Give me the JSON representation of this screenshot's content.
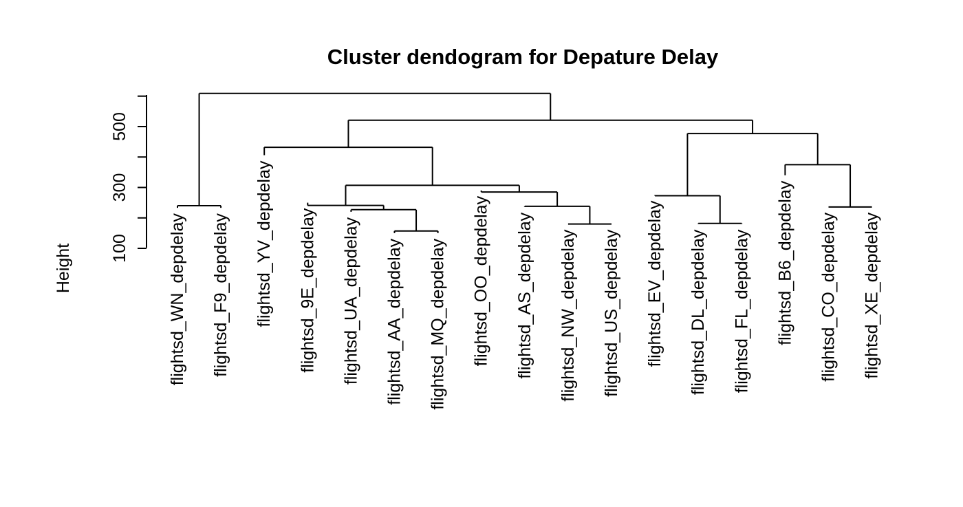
{
  "chart_data": {
    "type": "dendrogram",
    "title": "Cluster dendogram for Depature Delay",
    "xlabel": "",
    "ylabel": "Height",
    "ylim": [
      80,
      620
    ],
    "yticks": [
      100,
      300,
      500
    ],
    "grid": false,
    "legend": "none",
    "leaves": [
      "flightsd_WN_depdelay",
      "flightsd_F9_depdelay",
      "flightsd_YV_depdelay",
      "flightsd_9E_depdelay",
      "flightsd_UA_depdelay",
      "flightsd_AA_depdelay",
      "flightsd_MQ_depdelay",
      "flightsd_OO_depdelay",
      "flightsd_AS_depdelay",
      "flightsd_NW_depdelay",
      "flightsd_US_depdelay",
      "flightsd_EV_depdelay",
      "flightsd_DL_depdelay",
      "flightsd_FL_depdelay",
      "flightsd_B6_depdelay",
      "flightsd_CO_depdelay",
      "flightsd_XE_depdelay"
    ],
    "leaf_heights": [
      233,
      233,
      406,
      250,
      220,
      150,
      150,
      290,
      236,
      180,
      180,
      275,
      180,
      180,
      340,
      236,
      236
    ],
    "merges": [
      {
        "left": "L5",
        "right": "L6",
        "height": 157
      },
      {
        "left": "L9",
        "right": "L10",
        "height": 180
      },
      {
        "left": "L15",
        "right": "L16",
        "height": 236
      },
      {
        "left": "L12",
        "right": "L13",
        "height": 182
      },
      {
        "left": "L0",
        "right": "L1",
        "height": 240
      },
      {
        "left": "L4",
        "right": "N0",
        "height": 227
      },
      {
        "left": "L8",
        "right": "N1",
        "height": 238
      },
      {
        "left": "L3",
        "right": "N5",
        "height": 241
      },
      {
        "left": "L11",
        "right": "N3",
        "height": 273
      },
      {
        "left": "L7",
        "right": "N6",
        "height": 285
      },
      {
        "left": "N7",
        "right": "N9",
        "height": 307
      },
      {
        "left": "L14",
        "right": "N2",
        "height": 375
      },
      {
        "left": "L2",
        "right": "N10",
        "height": 432
      },
      {
        "left": "N8",
        "right": "N11",
        "height": 477
      },
      {
        "left": "N12",
        "right": "N13",
        "height": 521
      },
      {
        "left": "N4",
        "right": "N14",
        "height": 609
      }
    ]
  }
}
